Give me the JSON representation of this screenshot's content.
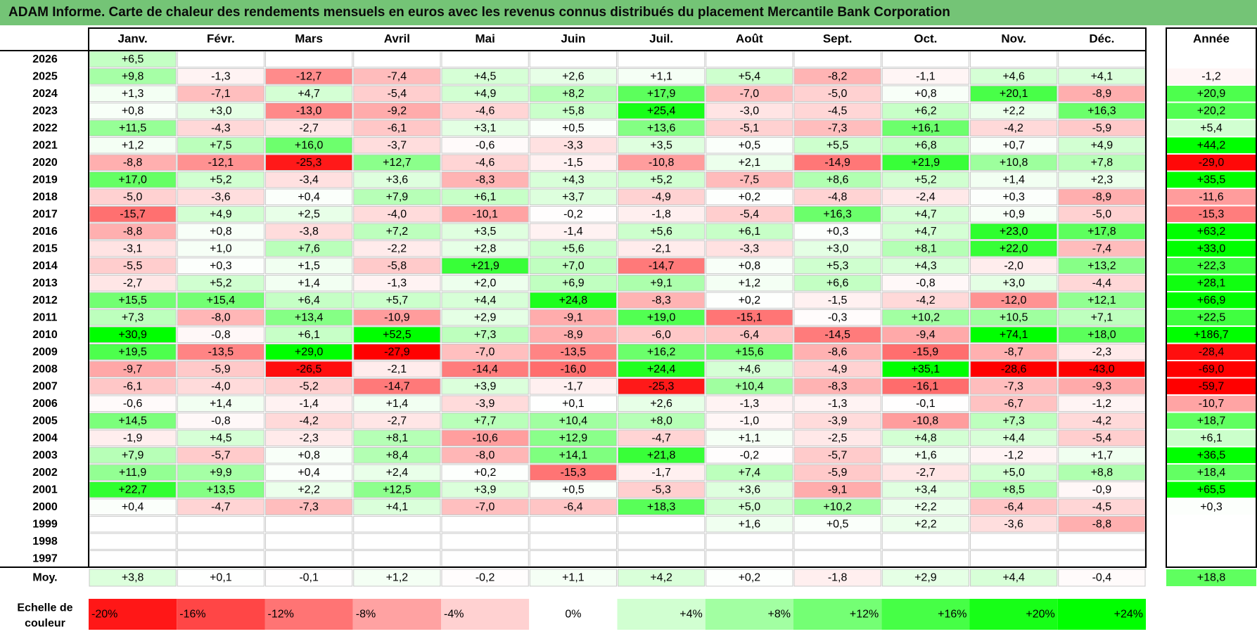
{
  "title": "ADAM Informe. Carte de chaleur des rendements mensuels en euros avec les revenus connus distribués du placement Mercantile Bank Corporation",
  "colors": {
    "title_bg": "#74c476",
    "negative": "#ff0000",
    "positive": "#00ff00",
    "neutral": "#ffffff"
  },
  "chart_data": {
    "type": "heatmap",
    "title": "ADAM Informe. Carte de chaleur des rendements mensuels en euros avec les revenus connus distribués du placement Mercantile Bank Corporation",
    "months": [
      "Janv.",
      "Févr.",
      "Mars",
      "Avril",
      "Mai",
      "Juin",
      "Juil.",
      "Août",
      "Sept.",
      "Oct.",
      "Nov.",
      "Déc."
    ],
    "annual_label": "Année",
    "rows": [
      {
        "year": "2026",
        "months": [
          "+6,5",
          "",
          "",
          "",
          "",
          "",
          "",
          "",
          "",
          "",
          "",
          ""
        ],
        "annual": ""
      },
      {
        "year": "2025",
        "months": [
          "+9,8",
          "-1,3",
          "-12,7",
          "-7,4",
          "+4,5",
          "+2,6",
          "+1,1",
          "+5,4",
          "-8,2",
          "-1,1",
          "+4,6",
          "+4,1"
        ],
        "annual": "-1,2"
      },
      {
        "year": "2024",
        "months": [
          "+1,3",
          "-7,1",
          "+4,7",
          "-5,4",
          "+4,9",
          "+8,2",
          "+17,9",
          "-7,0",
          "-5,0",
          "+0,8",
          "+20,1",
          "-8,9"
        ],
        "annual": "+20,9"
      },
      {
        "year": "2023",
        "months": [
          "+0,8",
          "+3,0",
          "-13,0",
          "-9,2",
          "-4,6",
          "+5,8",
          "+25,4",
          "-3,0",
          "-4,5",
          "+6,2",
          "+2,2",
          "+16,3"
        ],
        "annual": "+20,2"
      },
      {
        "year": "2022",
        "months": [
          "+11,5",
          "-4,3",
          "-2,7",
          "-6,1",
          "+3,1",
          "+0,5",
          "+13,6",
          "-5,1",
          "-7,3",
          "+16,1",
          "-4,2",
          "-5,9"
        ],
        "annual": "+5,4"
      },
      {
        "year": "2021",
        "months": [
          "+1,2",
          "+7,5",
          "+16,0",
          "-3,7",
          "-0,6",
          "-3,3",
          "+3,5",
          "+0,5",
          "+5,5",
          "+6,8",
          "+0,7",
          "+4,9"
        ],
        "annual": "+44,2"
      },
      {
        "year": "2020",
        "months": [
          "-8,8",
          "-12,1",
          "-25,3",
          "+12,7",
          "-4,6",
          "-1,5",
          "-10,8",
          "+2,1",
          "-14,9",
          "+21,9",
          "+10,8",
          "+7,8"
        ],
        "annual": "-29,0"
      },
      {
        "year": "2019",
        "months": [
          "+17,0",
          "+5,2",
          "-3,4",
          "+3,6",
          "-8,3",
          "+4,3",
          "+5,2",
          "-7,5",
          "+8,6",
          "+5,2",
          "+1,4",
          "+2,3"
        ],
        "annual": "+35,5"
      },
      {
        "year": "2018",
        "months": [
          "-5,0",
          "-3,6",
          "+0,4",
          "+7,9",
          "+6,1",
          "+3,7",
          "-4,9",
          "+0,2",
          "-4,8",
          "-2,4",
          "+0,3",
          "-8,9"
        ],
        "annual": "-11,6"
      },
      {
        "year": "2017",
        "months": [
          "-15,7",
          "+4,9",
          "+2,5",
          "-4,0",
          "-10,1",
          "-0,2",
          "-1,8",
          "-5,4",
          "+16,3",
          "+4,7",
          "+0,9",
          "-5,0"
        ],
        "annual": "-15,3"
      },
      {
        "year": "2016",
        "months": [
          "-8,8",
          "+0,8",
          "-3,8",
          "+7,2",
          "+3,5",
          "-1,4",
          "+5,6",
          "+6,1",
          "+0,3",
          "+4,7",
          "+23,0",
          "+17,8"
        ],
        "annual": "+63,2"
      },
      {
        "year": "2015",
        "months": [
          "-3,1",
          "+1,0",
          "+7,6",
          "-2,2",
          "+2,8",
          "+5,6",
          "-2,1",
          "-3,3",
          "+3,0",
          "+8,1",
          "+22,0",
          "-7,4"
        ],
        "annual": "+33,0"
      },
      {
        "year": "2014",
        "months": [
          "-5,5",
          "+0,3",
          "+1,5",
          "-5,8",
          "+21,9",
          "+7,0",
          "-14,7",
          "+0,8",
          "+5,3",
          "+4,3",
          "-2,0",
          "+13,2"
        ],
        "annual": "+22,3"
      },
      {
        "year": "2013",
        "months": [
          "-2,7",
          "+5,2",
          "+1,4",
          "-1,3",
          "+2,0",
          "+6,9",
          "+9,1",
          "+1,2",
          "+6,6",
          "-0,8",
          "+3,0",
          "-4,4"
        ],
        "annual": "+28,1"
      },
      {
        "year": "2012",
        "months": [
          "+15,5",
          "+15,4",
          "+6,4",
          "+5,7",
          "+4,4",
          "+24,8",
          "-8,3",
          "+0,2",
          "-1,5",
          "-4,2",
          "-12,0",
          "+12,1"
        ],
        "annual": "+66,9"
      },
      {
        "year": "2011",
        "months": [
          "+7,3",
          "-8,0",
          "+13,4",
          "-10,9",
          "+2,9",
          "-9,1",
          "+19,0",
          "-15,1",
          "-0,3",
          "+10,2",
          "+10,5",
          "+7,1"
        ],
        "annual": "+22,5"
      },
      {
        "year": "2010",
        "months": [
          "+30,9",
          "-0,8",
          "+6,1",
          "+52,5",
          "+7,3",
          "-8,9",
          "-6,0",
          "-6,4",
          "-14,5",
          "-9,4",
          "+74,1",
          "+18,0"
        ],
        "annual": "+186,7"
      },
      {
        "year": "2009",
        "months": [
          "+19,5",
          "-13,5",
          "+29,0",
          "-27,9",
          "-7,0",
          "-13,5",
          "+16,2",
          "+15,6",
          "-8,6",
          "-15,9",
          "-8,7",
          "-2,3"
        ],
        "annual": "-28,4"
      },
      {
        "year": "2008",
        "months": [
          "-9,7",
          "-5,9",
          "-26,5",
          "-2,1",
          "-14,4",
          "-16,0",
          "+24,4",
          "+4,6",
          "-4,9",
          "+35,1",
          "-28,6",
          "-43,0"
        ],
        "annual": "-69,0"
      },
      {
        "year": "2007",
        "months": [
          "-6,1",
          "-4,0",
          "-5,2",
          "-14,7",
          "+3,9",
          "-1,7",
          "-25,3",
          "+10,4",
          "-8,3",
          "-16,1",
          "-7,3",
          "-9,3"
        ],
        "annual": "-59,7"
      },
      {
        "year": "2006",
        "months": [
          "-0,6",
          "+1,4",
          "-1,4",
          "+1,4",
          "-3,9",
          "+0,1",
          "+2,6",
          "-1,3",
          "-1,3",
          "-0,1",
          "-6,7",
          "-1,2"
        ],
        "annual": "-10,7"
      },
      {
        "year": "2005",
        "months": [
          "+14,5",
          "-0,8",
          "-4,2",
          "-2,7",
          "+7,7",
          "+10,4",
          "+8,0",
          "-1,0",
          "-3,9",
          "-10,8",
          "+7,3",
          "-4,2"
        ],
        "annual": "+18,7"
      },
      {
        "year": "2004",
        "months": [
          "-1,9",
          "+4,5",
          "-2,3",
          "+8,1",
          "-10,6",
          "+12,9",
          "-4,7",
          "+1,1",
          "-2,5",
          "+4,8",
          "+4,4",
          "-5,4"
        ],
        "annual": "+6,1"
      },
      {
        "year": "2003",
        "months": [
          "+7,9",
          "-5,7",
          "+0,8",
          "+8,4",
          "-8,0",
          "+14,1",
          "+21,8",
          "-0,2",
          "-5,7",
          "+1,6",
          "-1,2",
          "+1,7"
        ],
        "annual": "+36,5"
      },
      {
        "year": "2002",
        "months": [
          "+11,9",
          "+9,9",
          "+0,4",
          "+2,4",
          "+0,2",
          "-15,3",
          "-1,7",
          "+7,4",
          "-5,9",
          "-2,7",
          "+5,0",
          "+8,8"
        ],
        "annual": "+18,4"
      },
      {
        "year": "2001",
        "months": [
          "+22,7",
          "+13,5",
          "+2,2",
          "+12,5",
          "+3,9",
          "+0,5",
          "-5,3",
          "+3,6",
          "-9,1",
          "+3,4",
          "+8,5",
          "-0,9"
        ],
        "annual": "+65,5"
      },
      {
        "year": "2000",
        "months": [
          "+0,4",
          "-4,7",
          "-7,3",
          "+4,1",
          "-7,0",
          "-6,4",
          "+18,3",
          "+5,0",
          "+10,2",
          "+2,2",
          "-6,4",
          "-4,5"
        ],
        "annual": "+0,3"
      },
      {
        "year": "1999",
        "months": [
          "",
          "",
          "",
          "",
          "",
          "",
          "",
          "+1,6",
          "+0,5",
          "+2,2",
          "-3,6",
          "-8,8"
        ],
        "annual": ""
      },
      {
        "year": "1998",
        "months": [
          "",
          "",
          "",
          "",
          "",
          "",
          "",
          "",
          "",
          "",
          "",
          ""
        ],
        "annual": ""
      },
      {
        "year": "1997",
        "months": [
          "",
          "",
          "",
          "",
          "",
          "",
          "",
          "",
          "",
          "",
          "",
          ""
        ],
        "annual": ""
      }
    ],
    "average": {
      "label": "Moy.",
      "months": [
        "+3,8",
        "+0,1",
        "-0,1",
        "+1,2",
        "-0,2",
        "+1,1",
        "+4,2",
        "+0,2",
        "-1,8",
        "+2,9",
        "+4,4",
        "-0,4"
      ],
      "annual": "+18,8"
    },
    "color_scale": {
      "label_lines": [
        "Echelle de",
        "couleur"
      ],
      "steps": [
        {
          "label": "-20%",
          "value": -20
        },
        {
          "label": "-16%",
          "value": -16
        },
        {
          "label": "-12%",
          "value": -12
        },
        {
          "label": "-8%",
          "value": -8
        },
        {
          "label": "-4%",
          "value": -4
        },
        {
          "label": "0%",
          "value": 0
        },
        {
          "label": "+4%",
          "value": 4
        },
        {
          "label": "+8%",
          "value": 8
        },
        {
          "label": "+12%",
          "value": 12
        },
        {
          "label": "+16%",
          "value": 16
        },
        {
          "label": "+20%",
          "value": 20
        },
        {
          "label": "+24%",
          "value": 24
        }
      ]
    }
  }
}
